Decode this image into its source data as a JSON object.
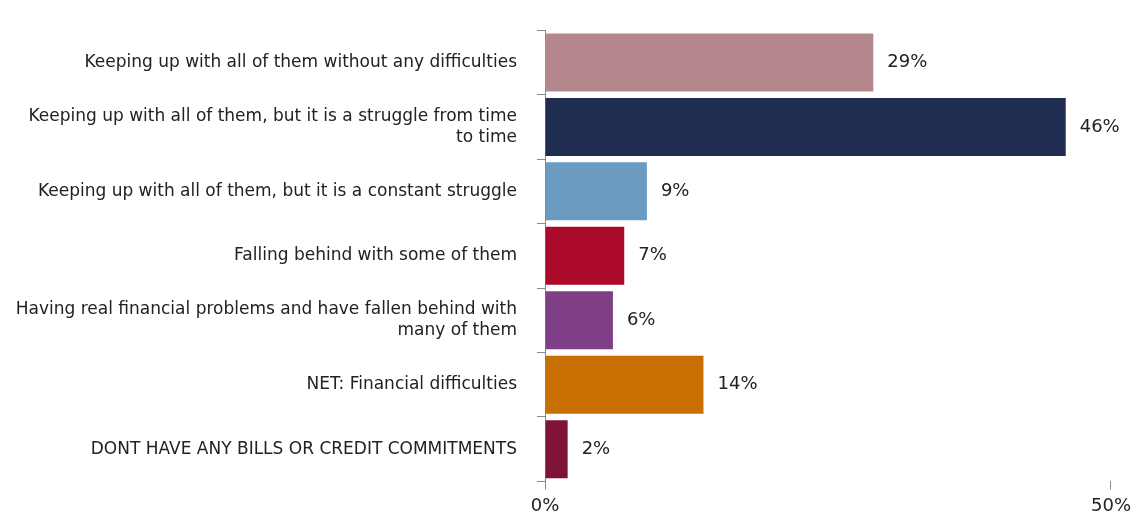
{
  "chart_data": {
    "type": "bar",
    "orientation": "horizontal",
    "categories": [
      "Keeping up with all of them without any difficulties",
      "Keeping up with all of them, but it is a struggle from time to time",
      "Keeping up with all of them, but it is a constant struggle",
      "Falling behind with some of them",
      "Having real financial problems and have fallen behind with many of them",
      "NET: Financial difficulties",
      "DONT HAVE ANY BILLS OR CREDIT COMMITMENTS"
    ],
    "values": [
      29,
      46,
      9,
      7,
      6,
      14,
      2
    ],
    "value_labels": [
      "29%",
      "46%",
      "9%",
      "7%",
      "6%",
      "14%",
      "2%"
    ],
    "colors": [
      "#b3878b",
      "#1f2d50",
      "#6b9bc0",
      "#ab0a2b",
      "#7f3f87",
      "#c76f00",
      "#7e1237"
    ],
    "xlim": [
      0,
      50
    ],
    "xticks": [
      {
        "value": 0,
        "label": "0%"
      },
      {
        "value": 50,
        "label": "50%"
      }
    ],
    "grid": false,
    "legend": false
  }
}
